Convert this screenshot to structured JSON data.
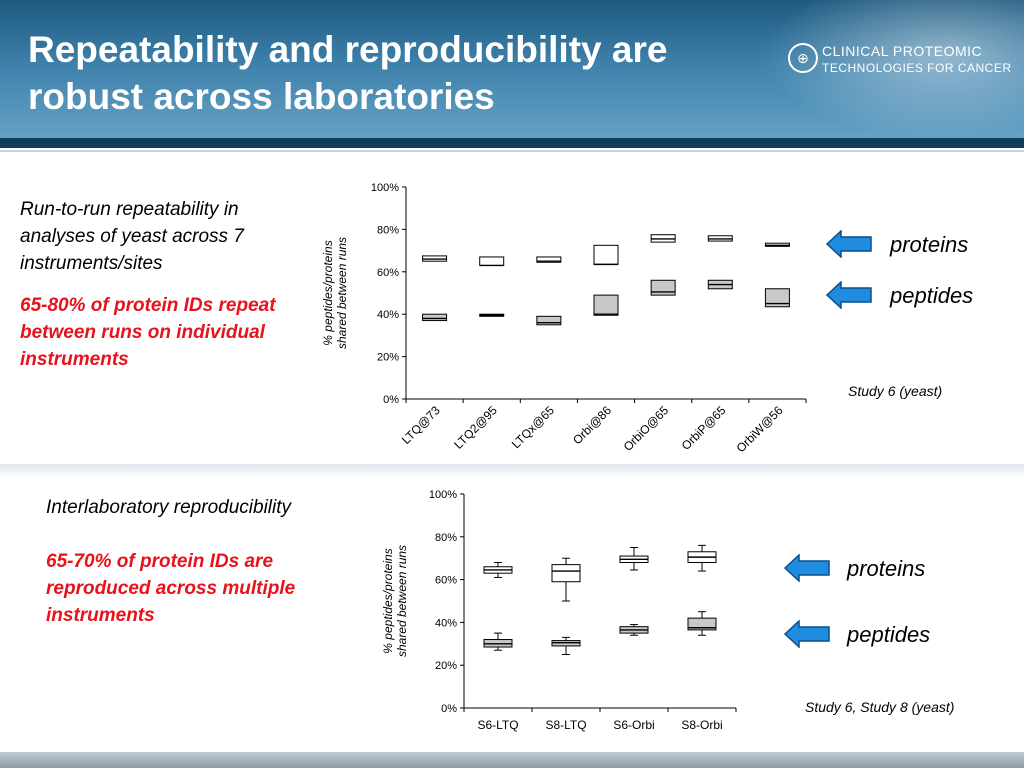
{
  "slide": {
    "title": "Repeatability and reproducibility are robust across laboratories",
    "logo": {
      "line1": "CLINICAL PROTEOMIC",
      "line2": "TECHNOLOGIES FOR CANCER"
    },
    "top_section": {
      "heading": "Run-to-run repeatability in analyses of yeast across 7 instruments/sites",
      "highlight": "65-80% of protein IDs repeat between runs on individual instruments",
      "proteins_label": "proteins",
      "peptides_label": "peptides",
      "study_note": "Study 6 (yeast)"
    },
    "bottom_section": {
      "heading": "Interlaboratory reproducibility",
      "highlight": "65-70% of protein IDs are reproduced across multiple instruments",
      "proteins_label": "proteins",
      "peptides_label": "peptides",
      "study_note": "Study 6, Study 8 (yeast)"
    },
    "colors": {
      "accent_red": "#e8121c",
      "arrow_blue": "#1f8ce0",
      "peptide_box_fill": "#c8c8c8",
      "header_blue": "#2f6f98"
    }
  },
  "chart_data": [
    {
      "type": "box",
      "ylabel_lines": [
        "% peptides/proteins",
        "shared between runs"
      ],
      "ylim": [
        0,
        100
      ],
      "yticks": [
        0,
        20,
        40,
        60,
        80,
        100
      ],
      "ytick_labels": [
        "0%",
        "20%",
        "40%",
        "60%",
        "80%",
        "100%"
      ],
      "categories": [
        "LTQ@73",
        "LTQ2@95",
        "LTQx@65",
        "Orbi@86",
        "OrbiO@65",
        "OrbiP@65",
        "OrbiW@56"
      ],
      "series": [
        {
          "boxes": [
            {
              "q1": 65,
              "median": 66,
              "q3": 67.5
            },
            {
              "q1": 63,
              "median": 63,
              "q3": 67
            },
            {
              "q1": 64.5,
              "median": 65,
              "q3": 67
            },
            {
              "q1": 63.5,
              "median": 63.5,
              "q3": 72.5
            },
            {
              "q1": 74,
              "median": 75.5,
              "q3": 77.5
            },
            {
              "q1": 74.5,
              "median": 75.5,
              "q3": 77
            },
            {
              "q1": 72,
              "median": 72.5,
              "q3": 73.5
            }
          ]
        },
        {
          "boxes": [
            {
              "q1": 37,
              "median": 38,
              "q3": 40
            },
            {
              "q1": 39,
              "median": 39.5,
              "q3": 40
            },
            {
              "q1": 35,
              "median": 36,
              "q3": 39
            },
            {
              "q1": 39.5,
              "median": 40,
              "q3": 49
            },
            {
              "q1": 49,
              "median": 50.5,
              "q3": 56
            },
            {
              "q1": 52,
              "median": 54,
              "q3": 56
            },
            {
              "q1": 43.5,
              "median": 45,
              "q3": 52
            }
          ]
        }
      ]
    },
    {
      "type": "box",
      "ylabel_lines": [
        "% peptides/proteins",
        "shared between runs"
      ],
      "ylim": [
        0,
        100
      ],
      "yticks": [
        0,
        20,
        40,
        60,
        80,
        100
      ],
      "ytick_labels": [
        "0%",
        "20%",
        "40%",
        "60%",
        "80%",
        "100%"
      ],
      "categories": [
        "S6-LTQ",
        "S8-LTQ",
        "S6-Orbi",
        "S8-Orbi"
      ],
      "series": [
        {
          "boxes": [
            {
              "min": 61,
              "q1": 63,
              "median": 64.5,
              "q3": 66,
              "max": 68
            },
            {
              "min": 50,
              "q1": 59,
              "median": 64,
              "q3": 67,
              "max": 70
            },
            {
              "min": 64.5,
              "q1": 68,
              "median": 69.5,
              "q3": 71,
              "max": 75
            },
            {
              "min": 64,
              "q1": 68,
              "median": 70.5,
              "q3": 73,
              "max": 76
            }
          ]
        },
        {
          "boxes": [
            {
              "min": 27,
              "q1": 28.5,
              "median": 30,
              "q3": 32,
              "max": 35
            },
            {
              "min": 25,
              "q1": 29,
              "median": 30.5,
              "q3": 31.5,
              "max": 33
            },
            {
              "min": 34,
              "q1": 35,
              "median": 36.5,
              "q3": 38,
              "max": 39
            },
            {
              "min": 34,
              "q1": 36.5,
              "median": 37.5,
              "q3": 42,
              "max": 45
            }
          ]
        }
      ]
    }
  ]
}
